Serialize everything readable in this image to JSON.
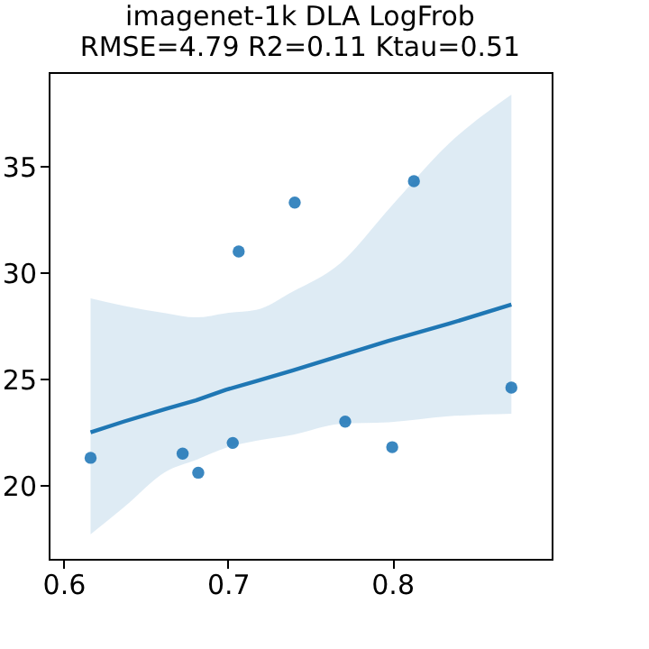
{
  "chart_data": {
    "type": "scatter",
    "title": "imagenet-1k DLA LogFrob",
    "subtitle": "RMSE=4.79  R2=0.11 Ktau=0.51",
    "xlim": [
      0.591,
      0.897
    ],
    "xticks": [
      0.6,
      0.7,
      0.8
    ],
    "ylim": [
      16.55,
      39.43
    ],
    "yticks": [
      20,
      25,
      30,
      35
    ],
    "series": [
      {
        "type": "scatter",
        "color": "#3a87c0",
        "marker": "circle",
        "x": [
          0.6165,
          0.6725,
          0.682,
          0.703,
          0.7066,
          0.7407,
          0.7714,
          0.8,
          0.8132,
          0.8725
        ],
        "values": [
          21.3,
          21.5,
          20.6,
          22.0,
          31.0,
          33.3,
          23.0,
          21.8,
          34.3,
          24.6
        ]
      },
      {
        "type": "line",
        "color": "#1f77b4",
        "line_style": "solid",
        "marker": "none",
        "x": [
          0.6165,
          0.6366,
          0.6623,
          0.6806,
          0.6989,
          0.7172,
          0.7392,
          0.7685,
          0.7978,
          0.8344,
          0.8725
        ],
        "values": [
          22.5,
          23.0,
          23.6,
          24.0,
          24.5,
          24.9,
          25.4,
          26.1,
          26.8,
          27.6,
          28.5
        ],
        "lower": [
          17.7,
          18.96,
          20.65,
          21.2,
          21.77,
          22.1,
          22.38,
          22.9,
          22.97,
          23.25,
          23.37
        ],
        "upper": [
          28.8,
          28.45,
          28.1,
          27.9,
          28.1,
          28.25,
          29.1,
          30.45,
          32.98,
          36.06,
          38.37
        ]
      }
    ]
  }
}
